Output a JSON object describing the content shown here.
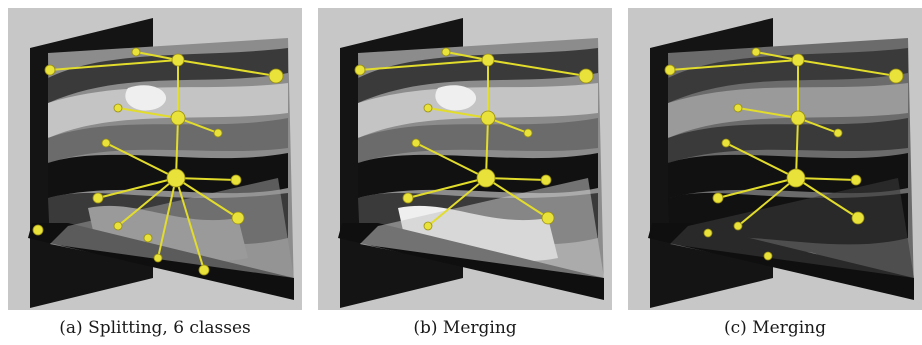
{
  "figure": {
    "panels": [
      {
        "id": "a",
        "caption_label": "(a)",
        "caption_text": "Splitting, 6 classes",
        "variant": "splitting"
      },
      {
        "id": "b",
        "caption_label": "(b)",
        "caption_text": "Merging",
        "variant": "merging"
      },
      {
        "id": "c",
        "caption_label": "(c)",
        "caption_text": "Merging",
        "variant": "merging-dark"
      }
    ]
  },
  "colors": {
    "background": "#c7c7c7",
    "frame": "#1a1a1a",
    "node": "#e8e23a",
    "edge": "#e2dc2c",
    "class_shades": [
      "#111111",
      "#3a3a3a",
      "#6b6b6b",
      "#9a9a9a",
      "#c4c4c4",
      "#efefef"
    ]
  }
}
